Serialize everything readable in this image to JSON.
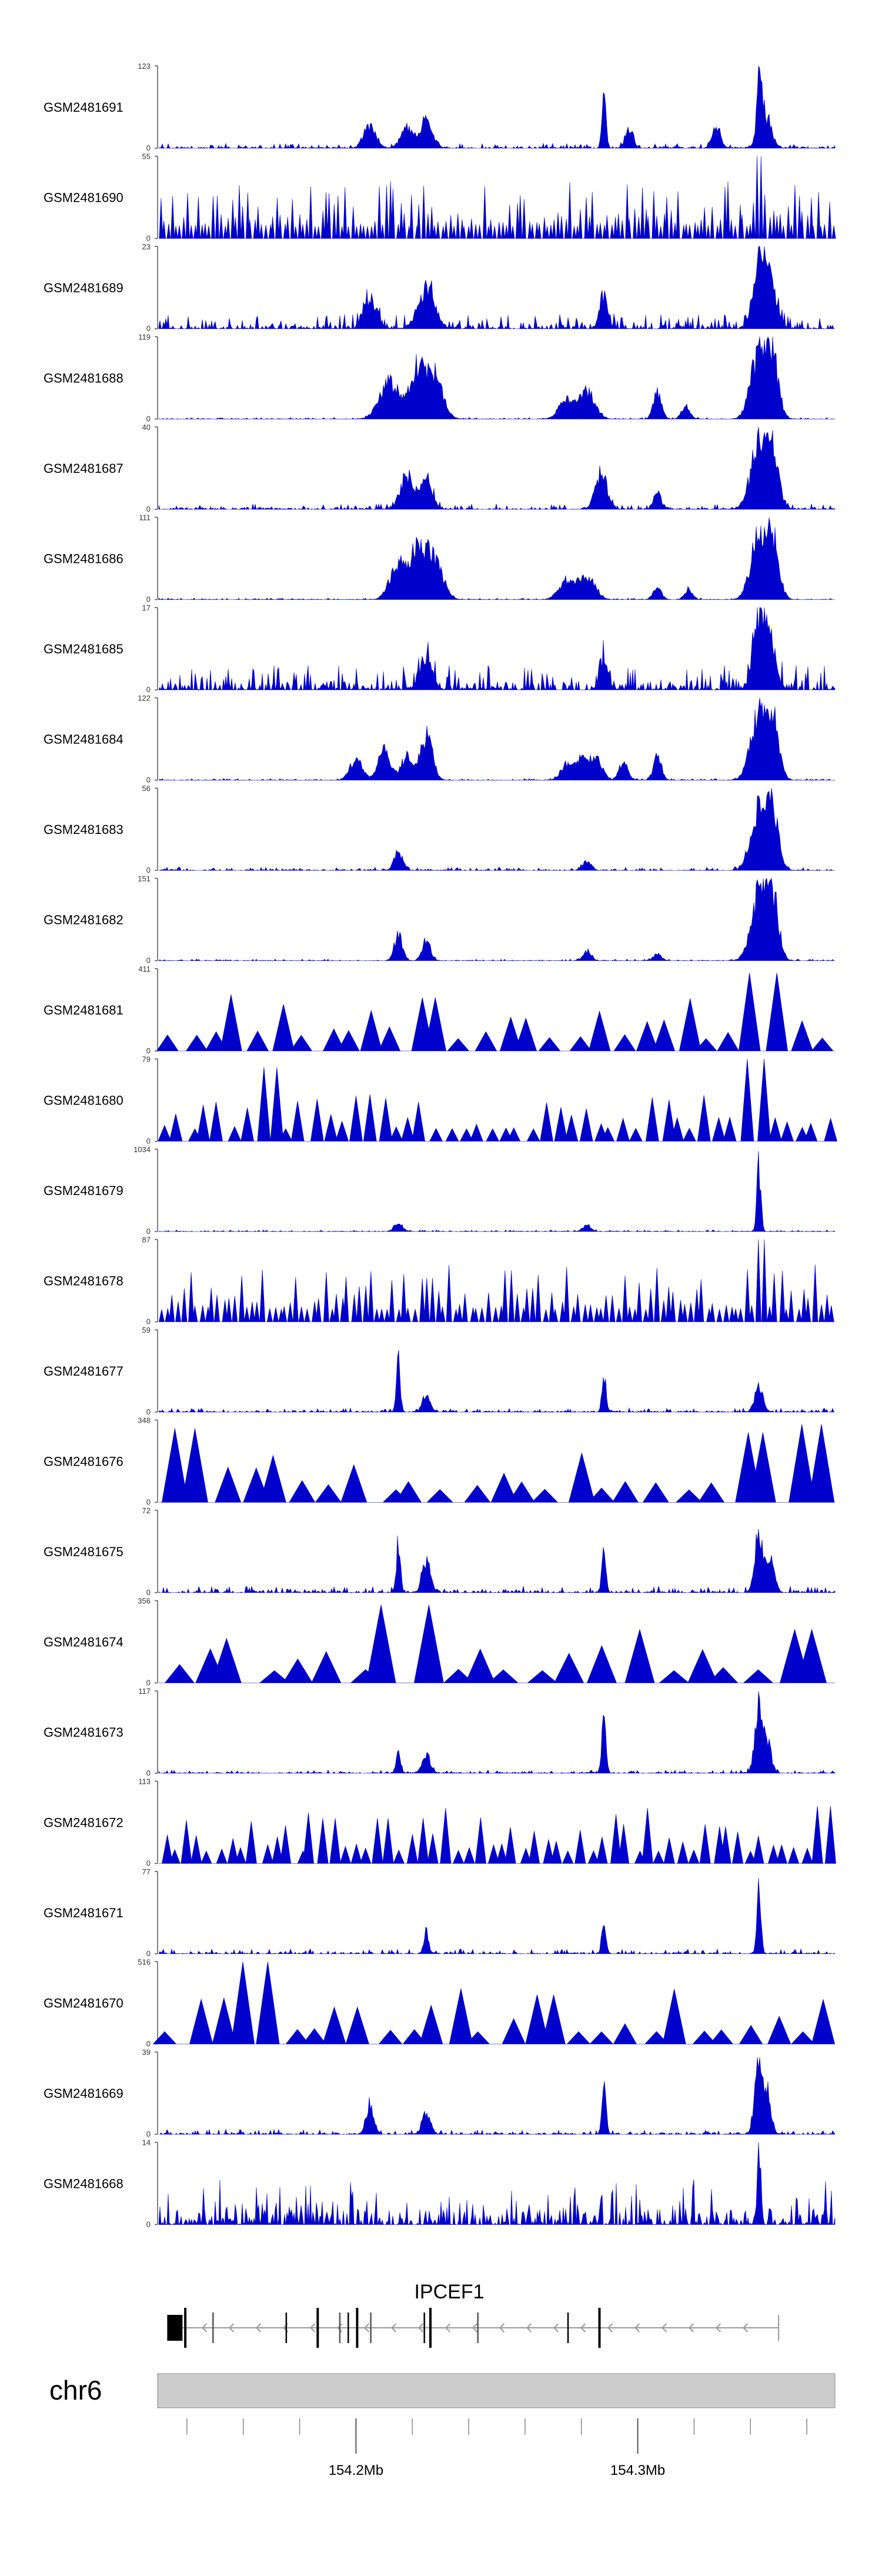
{
  "colors": {
    "signal": "#0000cc",
    "axis": "#555555",
    "ideogram": "#cccccc",
    "gene": "#000000",
    "intron": "#999999"
  },
  "chart_data": {
    "type": "area",
    "title": "",
    "xlabel": "",
    "ylabel": "",
    "x_unit": "Mb",
    "x_range": [
      154.13,
      154.37
    ],
    "tracks": [
      {
        "name": "GSM2481691",
        "ymax": "123",
        "ymin": "0",
        "max": 123,
        "style": "dense",
        "noise": 0.06,
        "peaks": [
          [
            154.205,
            0.35,
            0.003
          ],
          [
            154.218,
            0.3,
            0.003
          ],
          [
            154.225,
            0.45,
            0.003
          ],
          [
            154.288,
            0.8,
            0.001
          ],
          [
            154.297,
            0.25,
            0.002
          ],
          [
            154.328,
            0.35,
            0.002
          ],
          [
            154.343,
            1.0,
            0.001
          ],
          [
            154.345,
            0.55,
            0.003
          ]
        ]
      },
      {
        "name": "GSM2481690",
        "ymax": "55",
        "ymin": "0",
        "max": 55,
        "style": "sparse",
        "seed_n": 180,
        "peaks": [
          [
            154.343,
            1.0,
            0.001
          ]
        ]
      },
      {
        "name": "GSM2481689",
        "ymax": "23",
        "ymin": "0",
        "max": 23,
        "style": "dense",
        "noise": 0.18,
        "peaks": [
          [
            154.205,
            0.45,
            0.003
          ],
          [
            154.225,
            0.6,
            0.004
          ],
          [
            154.288,
            0.5,
            0.002
          ],
          [
            154.343,
            1.0,
            0.003
          ],
          [
            154.347,
            0.7,
            0.003
          ]
        ]
      },
      {
        "name": "GSM2481688",
        "ymax": "119",
        "ymin": "0",
        "max": 119,
        "style": "dense",
        "noise": 0.02,
        "peaks": [
          [
            154.212,
            0.55,
            0.005
          ],
          [
            154.222,
            0.8,
            0.004
          ],
          [
            154.228,
            0.65,
            0.004
          ],
          [
            154.275,
            0.3,
            0.004
          ],
          [
            154.282,
            0.4,
            0.004
          ],
          [
            154.307,
            0.4,
            0.002
          ],
          [
            154.317,
            0.2,
            0.002
          ],
          [
            154.343,
            1.0,
            0.004
          ],
          [
            154.348,
            0.85,
            0.003
          ]
        ]
      },
      {
        "name": "GSM2481687",
        "ymax": "40",
        "ymin": "0",
        "max": 40,
        "style": "dense",
        "noise": 0.07,
        "peaks": [
          [
            154.218,
            0.55,
            0.003
          ],
          [
            154.225,
            0.45,
            0.003
          ],
          [
            154.287,
            0.5,
            0.003
          ],
          [
            154.307,
            0.25,
            0.002
          ],
          [
            154.343,
            1.0,
            0.004
          ],
          [
            154.348,
            0.8,
            0.003
          ]
        ]
      },
      {
        "name": "GSM2481686",
        "ymax": "111",
        "ymin": "0",
        "max": 111,
        "style": "dense",
        "noise": 0.02,
        "peaks": [
          [
            154.215,
            0.55,
            0.004
          ],
          [
            154.222,
            0.75,
            0.004
          ],
          [
            154.228,
            0.6,
            0.004
          ],
          [
            154.275,
            0.3,
            0.004
          ],
          [
            154.282,
            0.35,
            0.004
          ],
          [
            154.307,
            0.2,
            0.002
          ],
          [
            154.318,
            0.15,
            0.002
          ],
          [
            154.343,
            1.0,
            0.004
          ],
          [
            154.348,
            0.85,
            0.003
          ]
        ]
      },
      {
        "name": "GSM2481685",
        "ymax": "17",
        "ymin": "0",
        "max": 17,
        "style": "dense",
        "noise": 0.3,
        "peaks": [
          [
            154.225,
            0.5,
            0.003
          ],
          [
            154.288,
            0.45,
            0.002
          ],
          [
            154.343,
            1.0,
            0.003
          ],
          [
            154.347,
            0.7,
            0.003
          ]
        ]
      },
      {
        "name": "GSM2481684",
        "ymax": "122",
        "ymin": "0",
        "max": 122,
        "style": "dense",
        "noise": 0.02,
        "peaks": [
          [
            154.2,
            0.35,
            0.003
          ],
          [
            154.21,
            0.45,
            0.003
          ],
          [
            154.218,
            0.35,
            0.003
          ],
          [
            154.225,
            0.7,
            0.003
          ],
          [
            154.275,
            0.25,
            0.003
          ],
          [
            154.28,
            0.3,
            0.003
          ],
          [
            154.285,
            0.35,
            0.003
          ],
          [
            154.295,
            0.3,
            0.002
          ],
          [
            154.307,
            0.35,
            0.002
          ],
          [
            154.343,
            1.0,
            0.004
          ],
          [
            154.348,
            0.85,
            0.003
          ]
        ]
      },
      {
        "name": "GSM2481683",
        "ymax": "56",
        "ymin": "0",
        "max": 56,
        "style": "dense",
        "noise": 0.04,
        "peaks": [
          [
            154.215,
            0.3,
            0.002
          ],
          [
            154.282,
            0.15,
            0.002
          ],
          [
            154.343,
            1.0,
            0.004
          ],
          [
            154.348,
            0.8,
            0.003
          ]
        ]
      },
      {
        "name": "GSM2481682",
        "ymax": "151",
        "ymin": "0",
        "max": 151,
        "style": "dense",
        "noise": 0.02,
        "peaks": [
          [
            154.215,
            0.4,
            0.002
          ],
          [
            154.225,
            0.35,
            0.002
          ],
          [
            154.282,
            0.15,
            0.002
          ],
          [
            154.307,
            0.1,
            0.002
          ],
          [
            154.343,
            1.0,
            0.004
          ],
          [
            154.348,
            0.85,
            0.003
          ]
        ]
      },
      {
        "name": "GSM2481681",
        "ymax": "411",
        "ymin": "0",
        "max": 411,
        "style": "sparse",
        "seed_n": 30,
        "peaks": [
          [
            154.225,
            0.65,
            0.001
          ],
          [
            154.343,
            0.95,
            0.001
          ]
        ]
      },
      {
        "name": "GSM2481680",
        "ymax": "79",
        "ymin": "0",
        "max": 79,
        "style": "sparse",
        "seed_n": 50,
        "peaks": [
          [
            154.17,
            0.9,
            0.001
          ],
          [
            154.343,
            1.0,
            0.001
          ]
        ]
      },
      {
        "name": "GSM2481679",
        "ymax": "1034",
        "ymin": "0",
        "max": 1034,
        "style": "dense",
        "noise": 0.02,
        "peaks": [
          [
            154.215,
            0.15,
            0.002
          ],
          [
            154.282,
            0.1,
            0.002
          ],
          [
            154.343,
            1.0,
            0.001
          ]
        ]
      },
      {
        "name": "GSM2481678",
        "ymax": "87",
        "ymin": "0",
        "max": 87,
        "style": "sparse",
        "seed_n": 120,
        "peaks": [
          [
            154.343,
            1.0,
            0.001
          ]
        ]
      },
      {
        "name": "GSM2481677",
        "ymax": "59",
        "ymin": "0",
        "max": 59,
        "style": "dense",
        "noise": 0.05,
        "peaks": [
          [
            154.215,
            0.85,
            0.001
          ],
          [
            154.225,
            0.25,
            0.002
          ],
          [
            154.288,
            0.6,
            0.001
          ],
          [
            154.343,
            0.45,
            0.002
          ]
        ]
      },
      {
        "name": "GSM2481676",
        "ymax": "348",
        "ymin": "0",
        "max": 348,
        "style": "sparse",
        "seed_n": 25,
        "peaks": [
          [
            154.135,
            0.9,
            0.001
          ],
          [
            154.343,
            0.85,
            0.001
          ],
          [
            154.365,
            0.95,
            0.001
          ]
        ]
      },
      {
        "name": "GSM2481675",
        "ymax": "72",
        "ymin": "0",
        "max": 72,
        "style": "dense",
        "noise": 0.08,
        "peaks": [
          [
            154.215,
            0.75,
            0.001
          ],
          [
            154.225,
            0.5,
            0.002
          ],
          [
            154.288,
            0.65,
            0.001
          ],
          [
            154.343,
            0.9,
            0.002
          ],
          [
            154.347,
            0.55,
            0.002
          ]
        ]
      },
      {
        "name": "GSM2481674",
        "ymax": "356",
        "ymin": "0",
        "max": 356,
        "style": "sparse",
        "seed_n": 22,
        "peaks": [
          [
            154.218,
            0.95,
            0.003
          ],
          [
            154.3,
            0.65,
            0.002
          ],
          [
            154.355,
            0.65,
            0.002
          ]
        ]
      },
      {
        "name": "GSM2481673",
        "ymax": "117",
        "ymin": "0",
        "max": 117,
        "style": "dense",
        "noise": 0.04,
        "peaks": [
          [
            154.215,
            0.4,
            0.001
          ],
          [
            154.225,
            0.3,
            0.002
          ],
          [
            154.288,
            0.85,
            0.001
          ],
          [
            154.343,
            1.0,
            0.002
          ],
          [
            154.346,
            0.45,
            0.002
          ]
        ]
      },
      {
        "name": "GSM2481672",
        "ymax": "113",
        "ymin": "0",
        "max": 113,
        "style": "sparse",
        "seed_n": 60,
        "peaks": [
          [
            154.19,
            0.55,
            0.001
          ],
          [
            154.21,
            0.55,
            0.001
          ],
          [
            154.33,
            0.45,
            0.001
          ],
          [
            154.365,
            0.7,
            0.001
          ]
        ]
      },
      {
        "name": "GSM2481671",
        "ymax": "77",
        "ymin": "0",
        "max": 77,
        "style": "dense",
        "noise": 0.06,
        "peaks": [
          [
            154.225,
            0.4,
            0.001
          ],
          [
            154.288,
            0.6,
            0.001
          ],
          [
            154.343,
            1.0,
            0.001
          ]
        ]
      },
      {
        "name": "GSM2481670",
        "ymax": "516",
        "ymin": "0",
        "max": 516,
        "style": "sparse",
        "seed_n": 28,
        "peaks": [
          [
            154.167,
            1.0,
            0.001
          ],
          [
            154.2,
            0.45,
            0.001
          ],
          [
            154.265,
            0.6,
            0.001
          ]
        ]
      },
      {
        "name": "GSM2481669",
        "ymax": "39",
        "ymin": "0",
        "max": 39,
        "style": "dense",
        "noise": 0.06,
        "peaks": [
          [
            154.205,
            0.45,
            0.002
          ],
          [
            154.225,
            0.35,
            0.002
          ],
          [
            154.288,
            0.75,
            0.001
          ],
          [
            154.343,
            1.0,
            0.002
          ],
          [
            154.346,
            0.6,
            0.002
          ]
        ]
      },
      {
        "name": "GSM2481668",
        "ymax": "14",
        "ymin": "0",
        "max": 14,
        "style": "dense",
        "noise": 0.55,
        "peaks": [
          [
            154.343,
            0.95,
            0.001
          ]
        ]
      }
    ],
    "gene": {
      "name": "IPCEF1",
      "strand": "-",
      "start_mb": 154.133,
      "end_mb": 154.35,
      "exons_mb": [
        154.139,
        154.149,
        154.175,
        154.186,
        154.194,
        154.197,
        154.2,
        154.205,
        154.224,
        154.226,
        154.243,
        154.275,
        154.286
      ]
    },
    "ideogram": {
      "chrom": "chr6",
      "ticks": [
        {
          "mb": 154.2,
          "label": "154.2Mb"
        },
        {
          "mb": 154.3,
          "label": "154.3Mb"
        }
      ],
      "minor_ticks_mb": [
        154.14,
        154.16,
        154.18,
        154.22,
        154.24,
        154.26,
        154.28,
        154.32,
        154.34,
        154.36
      ]
    }
  }
}
